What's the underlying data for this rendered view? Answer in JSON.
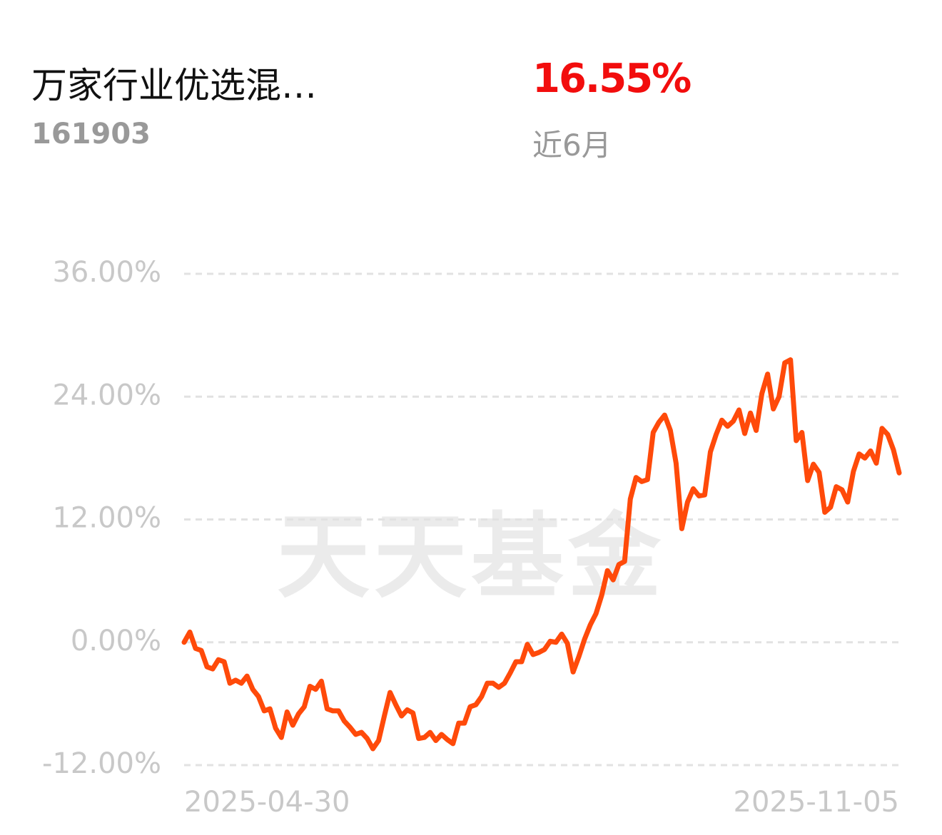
{
  "header": {
    "fund_name": "万家行业优选混…",
    "fund_code": "161903",
    "return": "16.55%",
    "period": "近6月"
  },
  "chart_data": {
    "type": "line",
    "watermark": "天天基金",
    "color": "#ff4a0a",
    "grid": true,
    "ylim": [
      -12,
      36
    ],
    "yticks": [
      {
        "value": -12,
        "label": "-12.00%"
      },
      {
        "value": 0,
        "label": "0.00%"
      },
      {
        "value": 12,
        "label": "12.00%"
      },
      {
        "value": 24,
        "label": "24.00%"
      },
      {
        "value": 36,
        "label": "36.00%"
      }
    ],
    "categories": [
      "2025-04-30",
      null,
      null,
      null,
      null,
      null,
      null,
      null,
      null,
      null,
      null,
      null,
      null,
      null,
      null,
      null,
      null,
      null,
      null,
      null,
      null,
      null,
      null,
      null,
      null,
      null,
      null,
      null,
      null,
      null,
      null,
      null,
      null,
      null,
      null,
      null,
      null,
      null,
      null,
      null,
      null,
      null,
      null,
      null,
      null,
      null,
      null,
      null,
      null,
      null,
      null,
      null,
      null,
      null,
      null,
      null,
      null,
      null,
      null,
      null,
      null,
      null,
      null,
      null,
      null,
      null,
      null,
      null,
      null,
      null,
      null,
      null,
      null,
      null,
      null,
      null,
      null,
      null,
      null,
      null,
      null,
      null,
      null,
      null,
      null,
      null,
      null,
      null,
      null,
      null,
      null,
      null,
      null,
      null,
      null,
      null,
      null,
      null,
      null,
      null,
      null,
      null,
      null,
      null,
      null,
      null,
      null,
      null,
      null,
      null,
      null,
      null,
      null,
      null,
      null,
      null,
      null,
      null,
      null,
      null,
      null,
      null,
      null,
      null,
      null,
      "2025-11-05"
    ],
    "values": [
      0,
      1.0,
      -0.6,
      -0.8,
      -2.4,
      -2.6,
      -1.7,
      -1.9,
      -4.0,
      -3.7,
      -4.0,
      -3.3,
      -4.6,
      -5.3,
      -6.7,
      -6.5,
      -8.4,
      -9.3,
      -6.8,
      -8.1,
      -7.0,
      -6.3,
      -4.3,
      -4.6,
      -3.8,
      -6.5,
      -6.7,
      -6.7,
      -7.7,
      -8.3,
      -9.0,
      -8.8,
      -9.4,
      -10.4,
      -9.6,
      -7.2,
      -4.9,
      -6.1,
      -7.2,
      -6.6,
      -6.9,
      -9.4,
      -9.3,
      -8.8,
      -9.6,
      -9.0,
      -9.5,
      -9.9,
      -7.9,
      -7.9,
      -6.3,
      -6.1,
      -5.3,
      -4.0,
      -4.0,
      -4.4,
      -4.0,
      -3.0,
      -1.9,
      -1.9,
      -0.2,
      -1.2,
      -1.0,
      -0.7,
      0.1,
      0,
      0.8,
      -0.1,
      -2.9,
      -1.4,
      0.3,
      1.7,
      2.8,
      4.6,
      7.0,
      6.1,
      7.6,
      7.9,
      14.0,
      16.1,
      15.7,
      15.9,
      20.5,
      21.5,
      22.2,
      20.7,
      17.5,
      11.1,
      13.7,
      15.0,
      14.3,
      14.4,
      18.6,
      20.3,
      21.7,
      21.1,
      21.6,
      22.7,
      20.4,
      22.4,
      20.7,
      24.3,
      26.2,
      22.8,
      24.0,
      27.3,
      27.6,
      19.7,
      20.5,
      15.8,
      17.4,
      16.6,
      12.7,
      13.2,
      15.2,
      14.9,
      13.7,
      16.7,
      18.4,
      18.0,
      18.7,
      17.5,
      20.9,
      20.3,
      18.8,
      16.55
    ]
  }
}
